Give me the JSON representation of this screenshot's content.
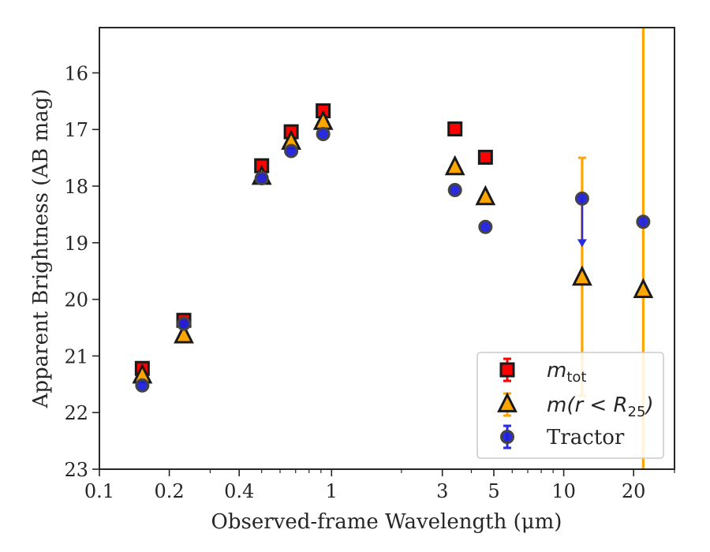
{
  "chart_data": {
    "type": "scatter",
    "xlabel": "Observed-frame Wavelength (μm)",
    "ylabel": "Apparent Brightness (AB mag)",
    "xscale": "log",
    "xlim": [
      0.1,
      30
    ],
    "ylim": [
      23,
      15.2
    ],
    "y_inverted": true,
    "grid": false,
    "legend_placement": "lower-right",
    "x_ticks": [
      {
        "value": 0.1,
        "label": "0.1"
      },
      {
        "value": 0.2,
        "label": "0.2"
      },
      {
        "value": 0.4,
        "label": "0.4"
      },
      {
        "value": 1,
        "label": "1"
      },
      {
        "value": 3,
        "label": "3"
      },
      {
        "value": 5,
        "label": "5"
      },
      {
        "value": 10,
        "label": "10"
      },
      {
        "value": 20,
        "label": "20"
      }
    ],
    "y_ticks": [
      {
        "value": 16,
        "label": "16"
      },
      {
        "value": 17,
        "label": "17"
      },
      {
        "value": 18,
        "label": "18"
      },
      {
        "value": 19,
        "label": "19"
      },
      {
        "value": 20,
        "label": "20"
      },
      {
        "value": 21,
        "label": "21"
      },
      {
        "value": 22,
        "label": "22"
      },
      {
        "value": 23,
        "label": "23"
      }
    ],
    "series": [
      {
        "name": "m_tot",
        "legend_main": "m",
        "legend_sub": "tot",
        "marker": "square",
        "color": "#ff0000",
        "error_color": "#ff0000",
        "points": [
          {
            "x": 0.153,
            "y": 21.22
          },
          {
            "x": 0.231,
            "y": 20.37
          },
          {
            "x": 0.5,
            "y": 17.64
          },
          {
            "x": 0.67,
            "y": 17.04
          },
          {
            "x": 0.92,
            "y": 16.67
          },
          {
            "x": 3.4,
            "y": 16.99
          },
          {
            "x": 4.6,
            "y": 17.49
          }
        ]
      },
      {
        "name": "m(r<R25)",
        "legend_main": "m(r < R",
        "legend_sub": "25",
        "legend_tail": ")",
        "marker": "triangle",
        "color": "#ffa500",
        "error_color": "#ffa500",
        "points": [
          {
            "x": 0.153,
            "y": 21.35
          },
          {
            "x": 0.231,
            "y": 20.64
          },
          {
            "x": 0.5,
            "y": 17.84
          },
          {
            "x": 0.67,
            "y": 17.22
          },
          {
            "x": 0.92,
            "y": 16.87
          },
          {
            "x": 3.4,
            "y": 17.67
          },
          {
            "x": 4.6,
            "y": 18.2
          },
          {
            "x": 12.0,
            "y": 19.62,
            "yerr_low": 17.5,
            "yerr_high": 21.7
          },
          {
            "x": 22.0,
            "y": 19.84,
            "yerr_low": 15.2,
            "yerr_high": 23.0
          }
        ]
      },
      {
        "name": "Tractor",
        "legend_main": "Tractor",
        "marker": "circle",
        "color": "#1f1fdd",
        "error_color": "#2a2ae0",
        "points": [
          {
            "x": 0.153,
            "y": 21.52
          },
          {
            "x": 0.231,
            "y": 20.43
          },
          {
            "x": 0.5,
            "y": 17.86
          },
          {
            "x": 0.67,
            "y": 17.38
          },
          {
            "x": 0.92,
            "y": 17.08
          },
          {
            "x": 3.4,
            "y": 18.07
          },
          {
            "x": 4.6,
            "y": 18.72
          },
          {
            "x": 12.0,
            "y": 18.22,
            "upper_limit_to": 19.05
          },
          {
            "x": 22.0,
            "y": 18.63
          }
        ]
      }
    ]
  }
}
